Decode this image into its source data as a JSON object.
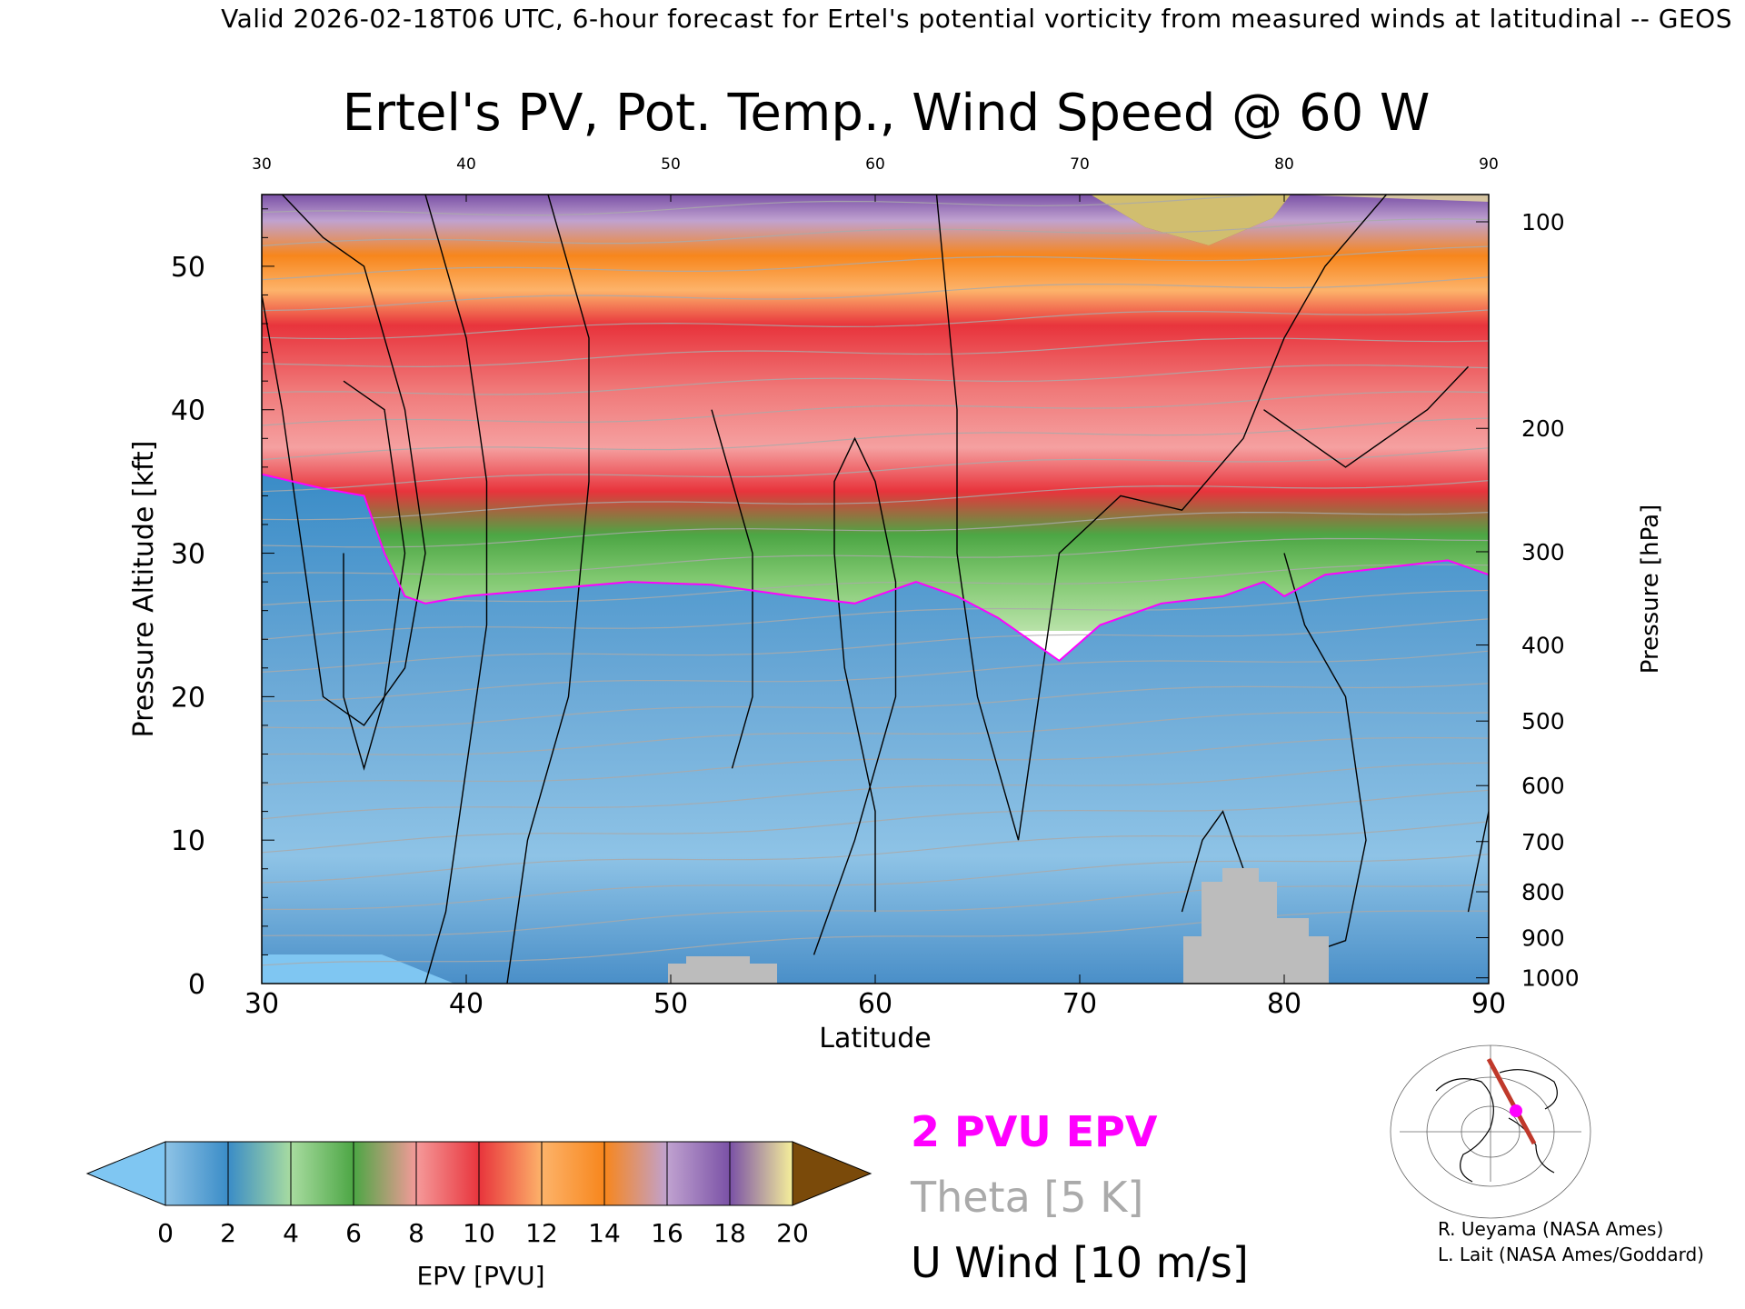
{
  "header": "Valid 2026-02-18T06 UTC, 6-hour forecast for Ertel's potential vorticity from measured winds at latitudinal -- GEOS",
  "title": "Ertel's PV, Pot. Temp., Wind Speed @ 60 W",
  "legend": {
    "pv_label": "2 PVU EPV",
    "theta_label": "Theta [5 K]",
    "wind_label": "U Wind [10 m/s]",
    "pv_color": "#ff00ff",
    "theta_color": "#aaaaaa",
    "wind_color": "#000000"
  },
  "colorbar": {
    "label": "EPV [PVU]",
    "ticks": [
      "0",
      "2",
      "4",
      "6",
      "8",
      "10",
      "12",
      "14",
      "16",
      "18",
      "20"
    ],
    "colors": [
      "#8ec3e6",
      "#3a8cc7",
      "#a8dca0",
      "#4ca644",
      "#f59a9a",
      "#e8343c",
      "#fdb36a",
      "#f7861c",
      "#c0a2d0",
      "#7a51a6",
      "#f6f09a"
    ],
    "under_color": "#7fc6f2",
    "over_color": "#7a4a0a"
  },
  "credits": {
    "line1": "R. Ueyama (NASA Ames)",
    "line2": "L. Lait (NASA Ames/Goddard)"
  },
  "chart_data": {
    "type": "heatmap",
    "title": "Ertel's PV, Pot. Temp., Wind Speed @ 60 W",
    "xlabel": "Latitude",
    "ylabel_left": "Pressure Altitude [kft]",
    "ylabel_right": "Pressure [hPa]",
    "xlim": [
      30,
      90
    ],
    "ylim": [
      0,
      55
    ],
    "x_ticks": [
      30,
      40,
      50,
      60,
      70,
      80,
      90
    ],
    "y_ticks_left": [
      0,
      10,
      20,
      30,
      40,
      50
    ],
    "y_ticks_right": [
      {
        "label": "100",
        "kft": 53.1
      },
      {
        "label": "200",
        "kft": 38.7
      },
      {
        "label": "300",
        "kft": 30.1
      },
      {
        "label": "400",
        "kft": 23.6
      },
      {
        "label": "500",
        "kft": 18.3
      },
      {
        "label": "600",
        "kft": 13.8
      },
      {
        "label": "700",
        "kft": 9.9
      },
      {
        "label": "800",
        "kft": 6.4
      },
      {
        "label": "900",
        "kft": 3.2
      },
      {
        "label": "1000",
        "kft": 0.4
      }
    ],
    "tropopause_2pvu": {
      "lat": [
        30,
        33,
        35,
        36,
        37,
        38,
        40,
        44,
        48,
        52,
        56,
        59,
        62,
        64,
        66,
        68,
        69,
        71,
        74,
        77,
        79,
        80,
        82,
        85,
        88,
        90
      ],
      "kft": [
        35.5,
        34.5,
        34.0,
        30.0,
        27.0,
        26.5,
        27.0,
        27.5,
        28.0,
        27.8,
        27.0,
        26.5,
        28.0,
        27.0,
        25.5,
        23.5,
        22.5,
        25.0,
        26.5,
        27.0,
        28.0,
        27.0,
        28.5,
        29.0,
        29.5,
        28.5
      ]
    },
    "theta_lines_K": [
      280,
      300,
      310,
      330,
      340,
      350,
      360,
      370,
      380,
      390,
      400,
      410
    ],
    "u_wind_contours_ms": [
      -10,
      0,
      10,
      20,
      30
    ],
    "epv_bands": [
      {
        "name": "tropospheric 0-2 PVU",
        "top_kft": "tropopause"
      },
      {
        "name": "4-6 PVU",
        "thickness_kft": 5
      },
      {
        "name": "8-10 PVU",
        "thickness_kft": 10
      },
      {
        "name": "12-14 PVU",
        "thickness_kft": 6
      },
      {
        "name": "16-20 PVU",
        "thickness_kft": 4
      }
    ]
  }
}
